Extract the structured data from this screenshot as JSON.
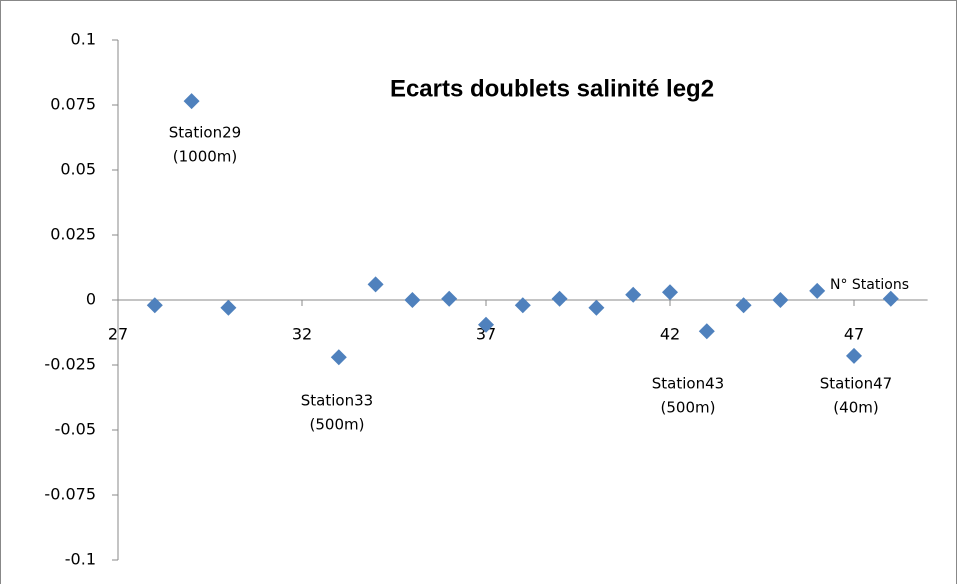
{
  "chart_data": {
    "type": "scatter",
    "title": "Ecarts doublets salinité leg2",
    "x_label": "N° Stations",
    "series": [
      {
        "color": "#4f81bd",
        "x": [
          28,
          29,
          30,
          33,
          34,
          35,
          36,
          37,
          38,
          39,
          40,
          41,
          42,
          43,
          44,
          45,
          46,
          47,
          48
        ],
        "values": [
          -0.002,
          0.0765,
          -0.003,
          -0.022,
          0.006,
          0,
          0.0005,
          -0.0095,
          -0.002,
          0.0005,
          -0.003,
          0.002,
          0.003,
          -0.012,
          -0.002,
          0,
          0.0035,
          -0.0215,
          0.0005
        ]
      }
    ],
    "annotations": [
      [
        "Station29",
        "(1000m)"
      ],
      [
        "Station33",
        "(500m)"
      ],
      [
        "Station43",
        "(500m)"
      ],
      [
        "Station47",
        "(40m)"
      ]
    ],
    "xlim": [
      27,
      49
    ],
    "xticks": [
      27,
      32,
      37,
      42,
      47
    ],
    "ylim": [
      -0.1,
      0.1
    ],
    "yticks": [
      0.1,
      0.075,
      0.05,
      0.025,
      0,
      -0.025,
      -0.05,
      -0.075,
      -0.1
    ]
  }
}
